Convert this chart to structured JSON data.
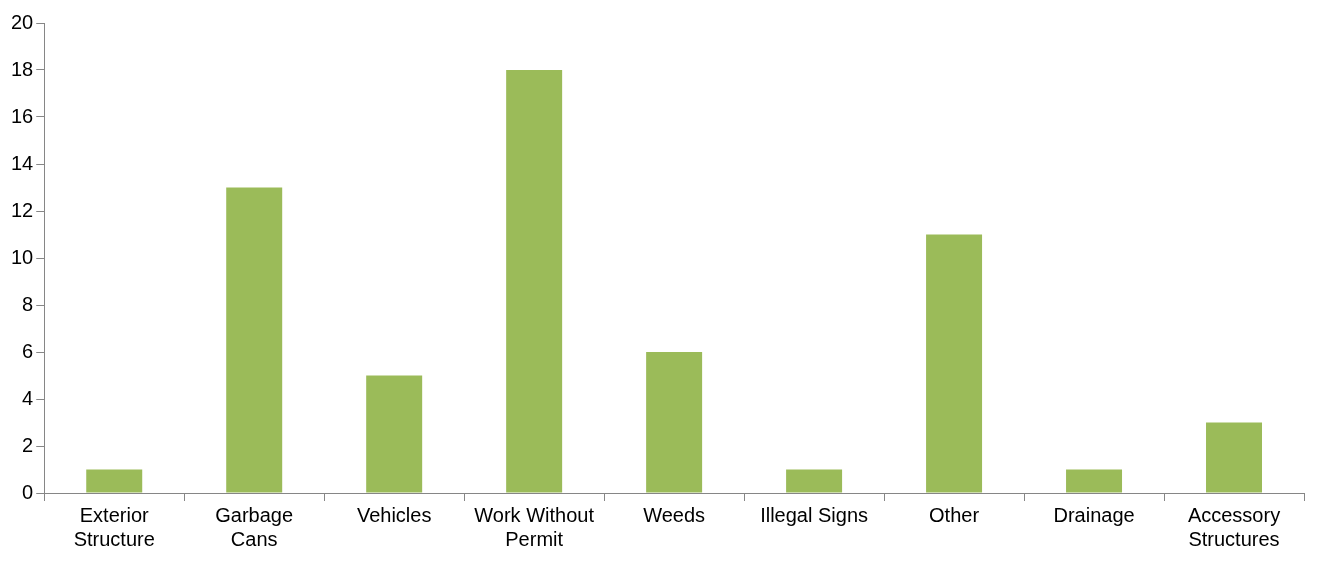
{
  "chart_data": {
    "type": "bar",
    "categories": [
      "Exterior Structure",
      "Garbage Cans",
      "Vehicles",
      "Work Without Permit",
      "Weeds",
      "Illegal Signs",
      "Other",
      "Drainage",
      "Accessory Structures"
    ],
    "values": [
      1,
      13,
      5,
      18,
      6,
      1,
      11,
      1,
      3
    ],
    "color": "#9bbb59",
    "ylim": [
      0,
      20
    ],
    "yticks": [
      0,
      2,
      4,
      6,
      8,
      10,
      12,
      14,
      16,
      18,
      20
    ],
    "grid": false,
    "legend": false
  }
}
